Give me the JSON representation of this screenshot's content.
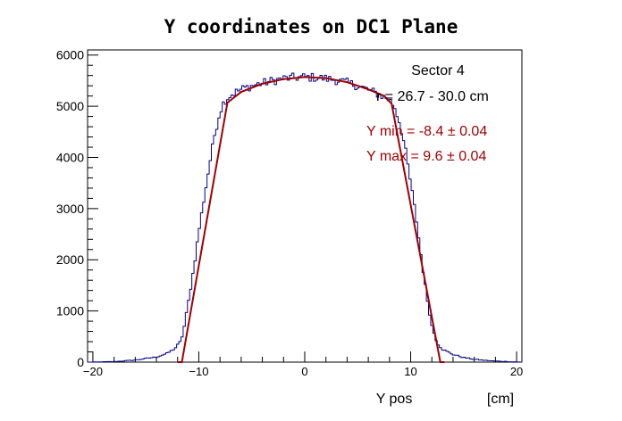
{
  "chart_data": {
    "type": "histogram",
    "title": "Y coordinates on DC1 Plane",
    "xlabel": "Y pos",
    "xunit": "[cm]",
    "xlim": [
      -20.5,
      20.5
    ],
    "ylim": [
      0,
      6100
    ],
    "x_ticks": [
      -20,
      -10,
      0,
      10,
      20
    ],
    "y_ticks": [
      0,
      1000,
      2000,
      3000,
      4000,
      5000,
      6000
    ],
    "annotations": {
      "sector": "Sector 4",
      "range": "r = 26.7 - 30.0 cm",
      "ymin": "Y min = -8.4  ± 0.04",
      "ymax": "Y max = 9.6  ± 0.04"
    },
    "histogram_color": "#00008b",
    "fit_color": "#a00000",
    "histogram_keypoints": [
      [
        -20.5,
        0
      ],
      [
        -18,
        10
      ],
      [
        -16,
        40
      ],
      [
        -14,
        100
      ],
      [
        -13,
        170
      ],
      [
        -12.3,
        260
      ],
      [
        -11.8,
        380
      ],
      [
        -11.5,
        550
      ],
      [
        -11,
        1150
      ],
      [
        -10.5,
        1800
      ],
      [
        -10,
        2550
      ],
      [
        -9.5,
        3200
      ],
      [
        -9,
        3850
      ],
      [
        -8.5,
        4450
      ],
      [
        -8,
        4900
      ],
      [
        -7.6,
        5100
      ],
      [
        -7,
        5220
      ],
      [
        -6,
        5330
      ],
      [
        -5,
        5400
      ],
      [
        -4,
        5450
      ],
      [
        -3,
        5500
      ],
      [
        -2,
        5540
      ],
      [
        -1,
        5560
      ],
      [
        0,
        5570
      ],
      [
        1,
        5560
      ],
      [
        2,
        5540
      ],
      [
        3,
        5510
      ],
      [
        4,
        5460
      ],
      [
        5,
        5400
      ],
      [
        6,
        5320
      ],
      [
        7,
        5230
      ],
      [
        8,
        5130
      ],
      [
        8.5,
        4980
      ],
      [
        9,
        4650
      ],
      [
        9.5,
        4150
      ],
      [
        10,
        3500
      ],
      [
        10.5,
        2850
      ],
      [
        11,
        2050
      ],
      [
        11.5,
        1300
      ],
      [
        12,
        700
      ],
      [
        12.5,
        380
      ],
      [
        13,
        250
      ],
      [
        14,
        150
      ],
      [
        15,
        90
      ],
      [
        16,
        55
      ],
      [
        17,
        35
      ],
      [
        18,
        20
      ],
      [
        19,
        12
      ],
      [
        20.5,
        0
      ]
    ],
    "fit_keypoints": [
      [
        -12,
        0
      ],
      [
        -11.6,
        0
      ],
      [
        -7.3,
        5070
      ],
      [
        -6,
        5280
      ],
      [
        -4,
        5440
      ],
      [
        -2,
        5530
      ],
      [
        0,
        5570
      ],
      [
        2,
        5550
      ],
      [
        4,
        5470
      ],
      [
        6,
        5330
      ],
      [
        7.5,
        5200
      ],
      [
        8.2,
        5050
      ],
      [
        12.8,
        0
      ],
      [
        13.2,
        0
      ]
    ]
  }
}
